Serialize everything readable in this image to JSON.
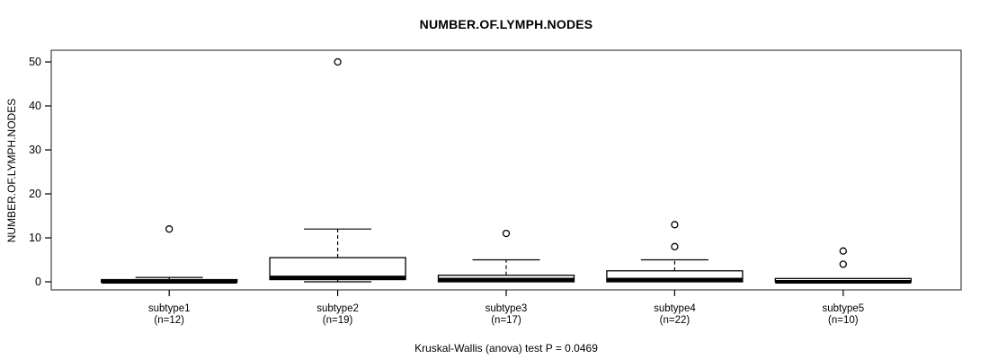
{
  "title": "NUMBER.OF.LYMPH.NODES",
  "y_axis_label": "NUMBER.OF.LYMPH.NODES",
  "annotation": "Kruskal-Wallis (anova) test P = 0.0469",
  "colors": {
    "line": "#000000",
    "frame": "#444444",
    "box_fill": "#ffffff",
    "background": "#ffffff"
  },
  "chart_data": {
    "type": "boxplot",
    "title": "NUMBER.OF.LYMPH.NODES",
    "xlabel": "",
    "ylabel": "NUMBER.OF.LYMPH.NODES",
    "ylim": [
      0,
      50
    ],
    "yticks": [
      0,
      10,
      20,
      30,
      40,
      50
    ],
    "grid": false,
    "legend": "none",
    "annotation": "Kruskal-Wallis (anova) test P = 0.0469",
    "categories": [
      "subtype1",
      "subtype2",
      "subtype3",
      "subtype4",
      "subtype5"
    ],
    "category_sublabels": [
      "(n=12)",
      "(n=19)",
      "(n=17)",
      "(n=22)",
      "(n=10)"
    ],
    "series": [
      {
        "name": "subtype1",
        "n": 12,
        "whisker_low": 0,
        "q1": 0,
        "median": 0,
        "q3": 0.5,
        "whisker_high": 1,
        "outliers": [
          12
        ]
      },
      {
        "name": "subtype2",
        "n": 19,
        "whisker_low": 0,
        "q1": 0.5,
        "median": 1,
        "q3": 5.5,
        "whisker_high": 12,
        "outliers": [
          50
        ]
      },
      {
        "name": "subtype3",
        "n": 17,
        "whisker_low": 0,
        "q1": 0,
        "median": 0.5,
        "q3": 1.5,
        "whisker_high": 5,
        "outliers": [
          11
        ]
      },
      {
        "name": "subtype4",
        "n": 22,
        "whisker_low": 0,
        "q1": 0,
        "median": 0.5,
        "q3": 2.5,
        "whisker_high": 5,
        "outliers": [
          13,
          8
        ]
      },
      {
        "name": "subtype5",
        "n": 10,
        "whisker_low": 0,
        "q1": 0,
        "median": 0,
        "q3": 0.75,
        "whisker_high": 0.75,
        "outliers": [
          7,
          4
        ]
      }
    ]
  }
}
